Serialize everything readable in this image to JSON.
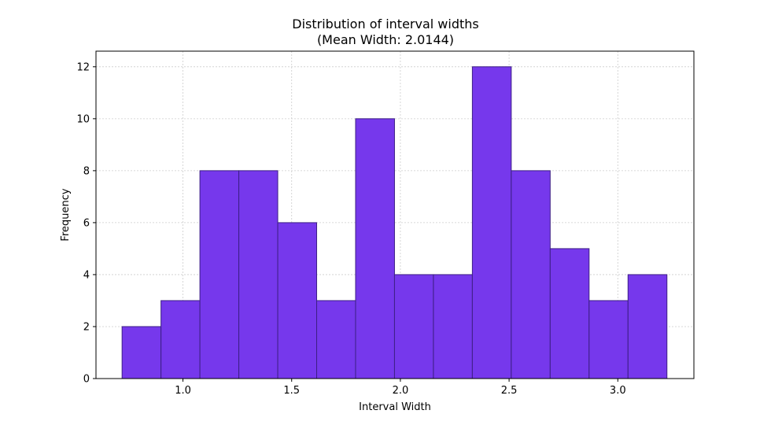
{
  "chart_data": {
    "type": "bar",
    "title": "Distribution of interval widths",
    "subtitle": "(Mean Width: 2.0144)",
    "xlabel": "Interval Width",
    "ylabel": "Frequency",
    "bin_edges": [
      0.72,
      0.899,
      1.078,
      1.257,
      1.436,
      1.615,
      1.794,
      1.973,
      2.152,
      2.331,
      2.51,
      2.689,
      2.868,
      3.047,
      3.226
    ],
    "values": [
      2,
      3,
      8,
      8,
      6,
      3,
      10,
      4,
      4,
      12,
      8,
      5,
      3,
      4
    ],
    "xlim": [
      0.6,
      3.35
    ],
    "ylim": [
      0,
      12.6
    ],
    "xticks": [
      1.0,
      1.5,
      2.0,
      2.5,
      3.0
    ],
    "xtick_labels": [
      "1.0",
      "1.5",
      "2.0",
      "2.5",
      "3.0"
    ],
    "yticks": [
      0,
      2,
      4,
      6,
      8,
      10,
      12
    ],
    "ytick_labels": [
      "0",
      "2",
      "4",
      "6",
      "8",
      "10",
      "12"
    ],
    "grid": true,
    "bar_color": "#7638ec",
    "edge_color": "#3d1f85",
    "grid_color": "#cccccc"
  }
}
